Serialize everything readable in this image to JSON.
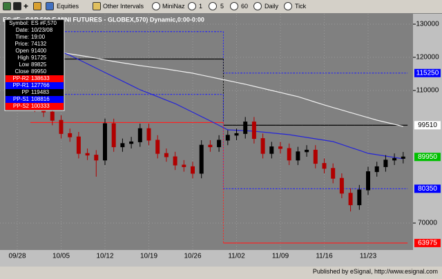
{
  "toolbar": {
    "items": [
      "Equities",
      "Other Intervals",
      "MiniNaz",
      "1",
      "5",
      "60",
      "Daily",
      "Tick"
    ]
  },
  "chart_data": {
    "type": "candlestick",
    "title": "ES #F - S&P 500 E MINI FUTURES - GLOBEX,570) Dynamic,0:00-0:00",
    "categories": [
      "09/28",
      null,
      null,
      null,
      null,
      "10/05",
      null,
      null,
      null,
      null,
      "10/12",
      null,
      null,
      null,
      null,
      "10/19",
      null,
      null,
      null,
      null,
      "10/26",
      null,
      null,
      null,
      null,
      "11/02",
      null,
      null,
      null,
      null,
      "11/09",
      null,
      null,
      null,
      null,
      "11/16",
      null,
      null,
      null,
      null,
      "11/23",
      null,
      null,
      null,
      null
    ],
    "open": [
      null,
      null,
      107000,
      105000,
      103500,
      101000,
      97000,
      96000,
      91000,
      90500,
      89000,
      100000,
      93000,
      94000,
      94500,
      98500,
      95000,
      91000,
      90000,
      87500,
      87000,
      85000,
      93500,
      93000,
      95000,
      96500,
      97000,
      100500,
      95500,
      91000,
      93000,
      92500,
      89000,
      91500,
      92000,
      88000,
      86500,
      83500,
      79000,
      75500,
      80000,
      85500,
      87000,
      89000,
      89500
    ],
    "high": [
      null,
      null,
      108500,
      106500,
      105000,
      102500,
      98500,
      97500,
      92500,
      92000,
      101500,
      101500,
      95500,
      96000,
      100000,
      100000,
      96500,
      92500,
      91500,
      89000,
      88500,
      95000,
      95000,
      96500,
      98000,
      98500,
      102000,
      102000,
      97000,
      94500,
      94500,
      94000,
      93000,
      93500,
      93500,
      89500,
      88000,
      85000,
      80500,
      81500,
      87000,
      88500,
      90500,
      91000,
      91450
    ],
    "low": [
      null,
      null,
      103500,
      102000,
      99500,
      95500,
      94500,
      89500,
      89000,
      84000,
      87500,
      91500,
      91500,
      92500,
      93000,
      93500,
      89500,
      88500,
      86000,
      85500,
      83500,
      83500,
      91500,
      91500,
      93500,
      95000,
      95500,
      94000,
      89500,
      89500,
      91000,
      87500,
      87500,
      90000,
      86500,
      85000,
      82000,
      77500,
      73500,
      74000,
      78500,
      84000,
      85500,
      87500,
      88000
    ],
    "close": [
      null,
      null,
      105000,
      103500,
      101000,
      97000,
      96000,
      91000,
      90500,
      89000,
      100000,
      93000,
      94000,
      94500,
      98500,
      95000,
      91000,
      90000,
      87500,
      87000,
      85000,
      93500,
      93000,
      95000,
      96500,
      97000,
      100500,
      95500,
      91000,
      93000,
      92500,
      89000,
      91500,
      92000,
      88000,
      86500,
      83500,
      79000,
      75500,
      80000,
      85500,
      87000,
      89000,
      89500,
      89950
    ],
    "up_color": "#000000",
    "down_color": "#b00000",
    "close_label_color": "#00c000",
    "ylim": [
      61875,
      133125
    ],
    "yticks": [
      70000,
      110000,
      120000,
      130000
    ],
    "grid": true,
    "series": [
      {
        "type": "step",
        "color": "#2020ff",
        "dashed": true,
        "label_color": "#0000ff",
        "values": [
          null,
          null,
          127766,
          127766,
          127766,
          127766,
          127766,
          127766,
          127766,
          127766,
          127766,
          127766,
          127766,
          127766,
          127766,
          127766,
          127766,
          127766,
          127766,
          127766,
          127766,
          127766,
          127766,
          127766,
          115250,
          115250,
          115250,
          115250,
          115250,
          115250,
          115250,
          115250,
          115250,
          115250,
          115250,
          115250,
          115250,
          115250,
          115250,
          115250,
          115250,
          115250,
          115250,
          115250,
          115250
        ]
      },
      {
        "type": "step",
        "color": "#000000",
        "dashed": false,
        "label_color": "#ffffff",
        "values": [
          null,
          null,
          119483,
          119483,
          119483,
          119483,
          119483,
          119483,
          119483,
          119483,
          119483,
          119483,
          119483,
          119483,
          119483,
          119483,
          119483,
          119483,
          119483,
          119483,
          119483,
          119483,
          119483,
          119483,
          99510,
          99510,
          99510,
          99510,
          99510,
          99510,
          99510,
          99510,
          99510,
          99510,
          99510,
          99510,
          99510,
          99510,
          99510,
          99510,
          99510,
          99510,
          99510,
          99510,
          99510
        ]
      },
      {
        "type": "step",
        "color": "#2020ff",
        "dashed": true,
        "label_color": "#0000ff",
        "values": [
          null,
          null,
          108816,
          108816,
          108816,
          108816,
          108816,
          108816,
          108816,
          108816,
          108816,
          108816,
          108816,
          108816,
          108816,
          108816,
          108816,
          108816,
          108816,
          108816,
          108816,
          108816,
          108816,
          108816,
          80350,
          80350,
          80350,
          80350,
          80350,
          80350,
          80350,
          80350,
          80350,
          80350,
          80350,
          80350,
          80350,
          80350,
          80350,
          80350,
          80350,
          80350,
          80350,
          80350,
          80350
        ]
      },
      {
        "type": "step",
        "color": "#ff2020",
        "dashed": false,
        "label_color": "#ff0000",
        "values": [
          null,
          null,
          100333,
          100333,
          100333,
          100333,
          100333,
          100333,
          100333,
          100333,
          100333,
          100333,
          100333,
          100333,
          100333,
          100333,
          100333,
          100333,
          100333,
          100333,
          100333,
          100333,
          100333,
          100333,
          63975,
          63975,
          63975,
          63975,
          63975,
          63975,
          63975,
          63975,
          63975,
          63975,
          63975,
          63975,
          63975,
          63975,
          63975,
          63975,
          63975,
          63975,
          63975,
          63975,
          63975
        ]
      },
      {
        "type": "line",
        "color": "#f0f0f0",
        "values": [
          null,
          null,
          122700,
          122290,
          121870,
          121460,
          121040,
          120630,
          120210,
          119720,
          119240,
          118750,
          118330,
          117920,
          117500,
          117150,
          116810,
          116460,
          116040,
          115630,
          115210,
          114650,
          114100,
          113540,
          112990,
          112430,
          111880,
          111250,
          110630,
          110000,
          109380,
          108750,
          108130,
          107300,
          106460,
          105630,
          104860,
          104100,
          103330,
          102570,
          101800,
          101040,
          100420,
          99790,
          99170
        ]
      },
      {
        "type": "line",
        "color": "#2424d8",
        "values": [
          null,
          null,
          124790,
          123750,
          122710,
          121670,
          120620,
          119320,
          118020,
          116720,
          115420,
          114120,
          112820,
          111520,
          110210,
          109170,
          108130,
          107080,
          106040,
          104740,
          103440,
          102130,
          100830,
          99480,
          98130,
          97990,
          97850,
          97710,
          97450,
          97190,
          96930,
          96670,
          96250,
          95830,
          95420,
          95000,
          94580,
          93700,
          92810,
          91930,
          91040,
          90630,
          90210,
          89800,
          89380
        ]
      }
    ]
  },
  "info_box": {
    "rows": [
      [
        "Symbol:",
        "ES #F,570"
      ],
      [
        "Date:",
        "10/23/08"
      ],
      [
        "Time:",
        "19:00"
      ],
      [
        "Price:",
        "74132"
      ],
      [
        "Open",
        "91400"
      ],
      [
        "High",
        "91725"
      ],
      [
        "Low",
        "89825"
      ],
      [
        "Close",
        "89950"
      ],
      [
        "PP-R2",
        "138633"
      ],
      [
        "PP-R1",
        "127766"
      ],
      [
        "PP",
        "119483"
      ],
      [
        "PP-S1",
        "108816"
      ],
      [
        "PP-S2",
        "100333"
      ]
    ],
    "row_colors": [
      "#000000",
      "#000000",
      "#000000",
      "#000000",
      "#000000",
      "#000000",
      "#000000",
      "#000000",
      "#ff0000",
      "#0000ff",
      "#000000",
      "#0000ff",
      "#ff0000"
    ]
  },
  "footer": "Published by eSignal, http://www.esignal.com"
}
